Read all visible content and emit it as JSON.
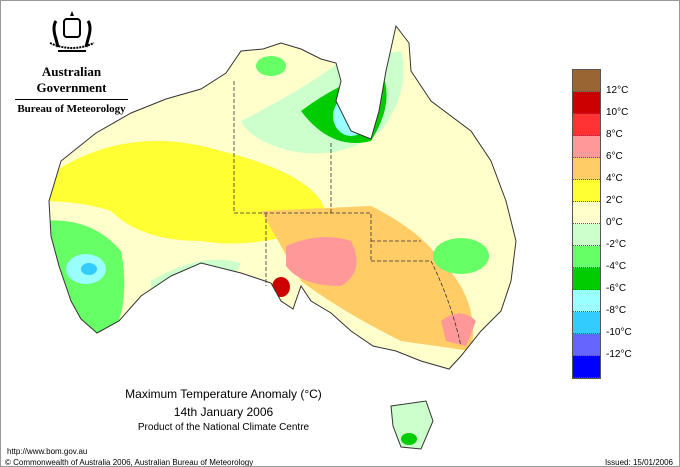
{
  "header": {
    "government": "Australian Government",
    "bureau": "Bureau of Meteorology"
  },
  "map": {
    "title": "Maximum Temperature Anomaly (°C)",
    "date": "14th January 2006",
    "product": "Product of the National Climate Centre"
  },
  "legend": {
    "colors": [
      "#996633",
      "#cc0000",
      "#ff3333",
      "#ff9999",
      "#ffcc66",
      "#ffff33",
      "#ffffcc",
      "#ccffcc",
      "#66ff66",
      "#00cc00",
      "#99ffff",
      "#33ccff",
      "#6666ff",
      "#0000ff"
    ],
    "labels": [
      "12°C",
      "10°C",
      "8°C",
      "6°C",
      "4°C",
      "2°C",
      "0°C",
      "-2°C",
      "-4°C",
      "-6°C",
      "-8°C",
      "-10°C",
      "-12°C"
    ]
  },
  "footer": {
    "url": "http://www.bom.gov.au",
    "copyright": "© Commonwealth of Australia 2006, Australian Bureau of Meteorology",
    "issued": "Issued: 15/01/2006"
  }
}
